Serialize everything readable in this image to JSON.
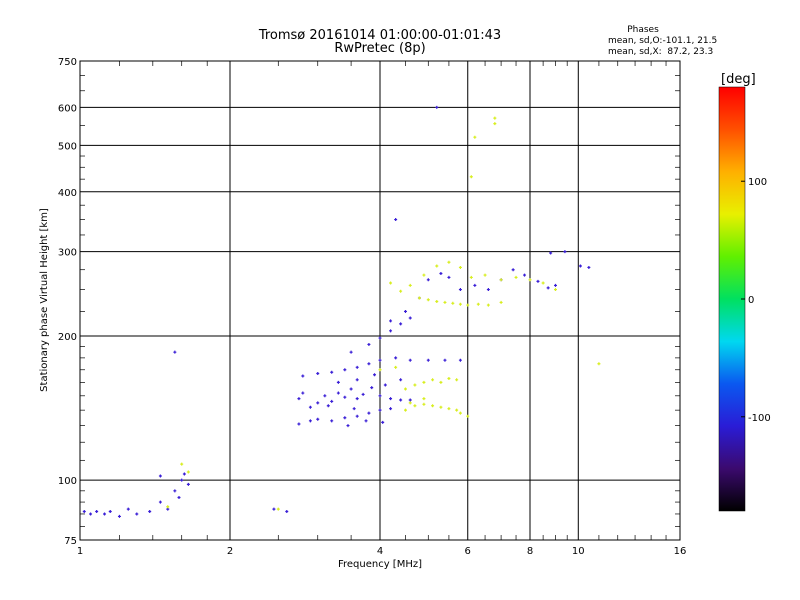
{
  "header": {
    "title_line1": "Tromsø 20161014 01:00:00-01:01:43",
    "title_line2": "RwPretec (8p)",
    "phases_title": "Phases",
    "phases_o": "mean, sd,O:-101.1, 21.5",
    "phases_x": "mean, sd,X:  87.2, 23.3"
  },
  "colors": {
    "o_mode": "#3a1fd6",
    "x_mode": "#d8ee20",
    "scale": [
      "#000000",
      "#3b0a6e",
      "#2a1cd6",
      "#0a58f0",
      "#00d8f0",
      "#00e060",
      "#60f000",
      "#e8f000",
      "#ffb000",
      "#ff5000",
      "#ff0000"
    ]
  },
  "chart_data": {
    "type": "scatter",
    "title": "Tromsø 20161014 01:00:00-01:01:43",
    "subtitle": "RwPretec (8p)",
    "xlabel": "Frequency [MHz]",
    "ylabel": "Stationary phase Virtual Height [km]",
    "x_scale": "log",
    "y_scale": "log",
    "xlim": [
      1,
      16
    ],
    "ylim": [
      75,
      750
    ],
    "grid": true,
    "x_ticks": [
      1,
      2,
      4,
      6,
      8,
      10,
      16
    ],
    "x_tick_labels": [
      "1",
      "2",
      "4",
      "6",
      "8",
      "10",
      "16"
    ],
    "y_ticks": [
      75,
      100,
      200,
      300,
      400,
      500,
      600,
      750
    ],
    "y_tick_labels": [
      "75",
      "100",
      "200",
      "300",
      "400",
      "500",
      "600",
      "750"
    ],
    "colorbar": {
      "label": "[deg]",
      "range": [
        -180,
        180
      ],
      "ticks": [
        100,
        0,
        -100
      ],
      "tick_labels": [
        "100",
        "0",
        "-100"
      ]
    },
    "series": [
      {
        "mode": "O",
        "phase_deg": -101.1,
        "points": [
          [
            1.02,
            86
          ],
          [
            1.05,
            85
          ],
          [
            1.08,
            86
          ],
          [
            1.12,
            85
          ],
          [
            1.15,
            86
          ],
          [
            1.2,
            84
          ],
          [
            1.25,
            87
          ],
          [
            1.3,
            85
          ],
          [
            1.38,
            86
          ],
          [
            1.45,
            90
          ],
          [
            1.5,
            87
          ],
          [
            1.55,
            95
          ],
          [
            1.6,
            100
          ],
          [
            1.62,
            103
          ],
          [
            1.65,
            98
          ],
          [
            1.58,
            92
          ],
          [
            1.45,
            102
          ],
          [
            1.55,
            185
          ],
          [
            2.45,
            87
          ],
          [
            2.6,
            86
          ],
          [
            2.75,
            148
          ],
          [
            2.8,
            152
          ],
          [
            2.9,
            142
          ],
          [
            3.0,
            145
          ],
          [
            3.1,
            150
          ],
          [
            3.2,
            146
          ],
          [
            3.3,
            152
          ],
          [
            3.4,
            149
          ],
          [
            3.5,
            155
          ],
          [
            3.6,
            148
          ],
          [
            3.7,
            151
          ],
          [
            3.85,
            156
          ],
          [
            4.0,
            150
          ],
          [
            4.2,
            148
          ],
          [
            4.4,
            147
          ],
          [
            4.6,
            147
          ],
          [
            2.75,
            131
          ],
          [
            2.9,
            133
          ],
          [
            3.0,
            134
          ],
          [
            3.2,
            133
          ],
          [
            3.4,
            135
          ],
          [
            3.6,
            136
          ],
          [
            3.8,
            138
          ],
          [
            4.0,
            140
          ],
          [
            4.2,
            141
          ],
          [
            2.8,
            165
          ],
          [
            3.0,
            167
          ],
          [
            3.2,
            168
          ],
          [
            3.4,
            170
          ],
          [
            3.6,
            172
          ],
          [
            3.8,
            175
          ],
          [
            4.0,
            178
          ],
          [
            4.3,
            180
          ],
          [
            4.6,
            178
          ],
          [
            5.0,
            178
          ],
          [
            5.4,
            178
          ],
          [
            5.8,
            178
          ],
          [
            3.5,
            185
          ],
          [
            3.8,
            192
          ],
          [
            4.0,
            198
          ],
          [
            4.2,
            205
          ],
          [
            4.4,
            212
          ],
          [
            4.6,
            218
          ],
          [
            4.2,
            215
          ],
          [
            4.5,
            225
          ],
          [
            4.8,
            240
          ],
          [
            5.0,
            262
          ],
          [
            5.3,
            270
          ],
          [
            5.5,
            265
          ],
          [
            5.8,
            250
          ],
          [
            3.3,
            160
          ],
          [
            3.6,
            162
          ],
          [
            3.9,
            166
          ],
          [
            4.1,
            158
          ],
          [
            4.4,
            162
          ],
          [
            3.15,
            143
          ],
          [
            3.45,
            130
          ],
          [
            3.75,
            133
          ],
          [
            4.05,
            132
          ],
          [
            3.55,
            141
          ],
          [
            6.2,
            255
          ],
          [
            6.6,
            250
          ],
          [
            7.0,
            262
          ],
          [
            7.4,
            275
          ],
          [
            7.8,
            268
          ],
          [
            8.3,
            260
          ],
          [
            8.7,
            252
          ],
          [
            9.0,
            255
          ],
          [
            9.4,
            300
          ],
          [
            8.8,
            298
          ],
          [
            10.1,
            280
          ],
          [
            10.5,
            278
          ],
          [
            4.3,
            350
          ],
          [
            5.2,
            600
          ]
        ]
      },
      {
        "mode": "X",
        "phase_deg": 87.2,
        "points": [
          [
            4.5,
            155
          ],
          [
            4.7,
            158
          ],
          [
            4.9,
            160
          ],
          [
            5.1,
            162
          ],
          [
            5.3,
            160
          ],
          [
            5.5,
            163
          ],
          [
            5.7,
            162
          ],
          [
            4.5,
            140
          ],
          [
            4.7,
            143
          ],
          [
            4.9,
            144
          ],
          [
            5.1,
            143
          ],
          [
            5.3,
            142
          ],
          [
            5.5,
            141
          ],
          [
            5.7,
            140
          ],
          [
            4.8,
            240
          ],
          [
            5.0,
            238
          ],
          [
            5.2,
            236
          ],
          [
            5.4,
            235
          ],
          [
            5.6,
            234
          ],
          [
            5.8,
            233
          ],
          [
            6.0,
            232
          ],
          [
            6.3,
            233
          ],
          [
            6.6,
            232
          ],
          [
            7.0,
            235
          ],
          [
            4.6,
            255
          ],
          [
            4.9,
            268
          ],
          [
            5.2,
            280
          ],
          [
            5.5,
            285
          ],
          [
            5.8,
            278
          ],
          [
            6.1,
            265
          ],
          [
            6.5,
            268
          ],
          [
            7.0,
            262
          ],
          [
            7.5,
            265
          ],
          [
            8.0,
            262
          ],
          [
            8.5,
            258
          ],
          [
            9.0,
            250
          ],
          [
            4.0,
            170
          ],
          [
            4.3,
            172
          ],
          [
            4.2,
            258
          ],
          [
            4.4,
            248
          ],
          [
            5.8,
            138
          ],
          [
            6.0,
            136
          ],
          [
            1.6,
            108
          ],
          [
            1.65,
            104
          ],
          [
            1.5,
            88
          ],
          [
            2.5,
            87
          ],
          [
            6.8,
            570
          ],
          [
            6.8,
            555
          ],
          [
            6.1,
            430
          ],
          [
            6.2,
            520
          ],
          [
            11.0,
            175
          ],
          [
            4.6,
            145
          ],
          [
            4.9,
            148
          ]
        ]
      }
    ]
  }
}
